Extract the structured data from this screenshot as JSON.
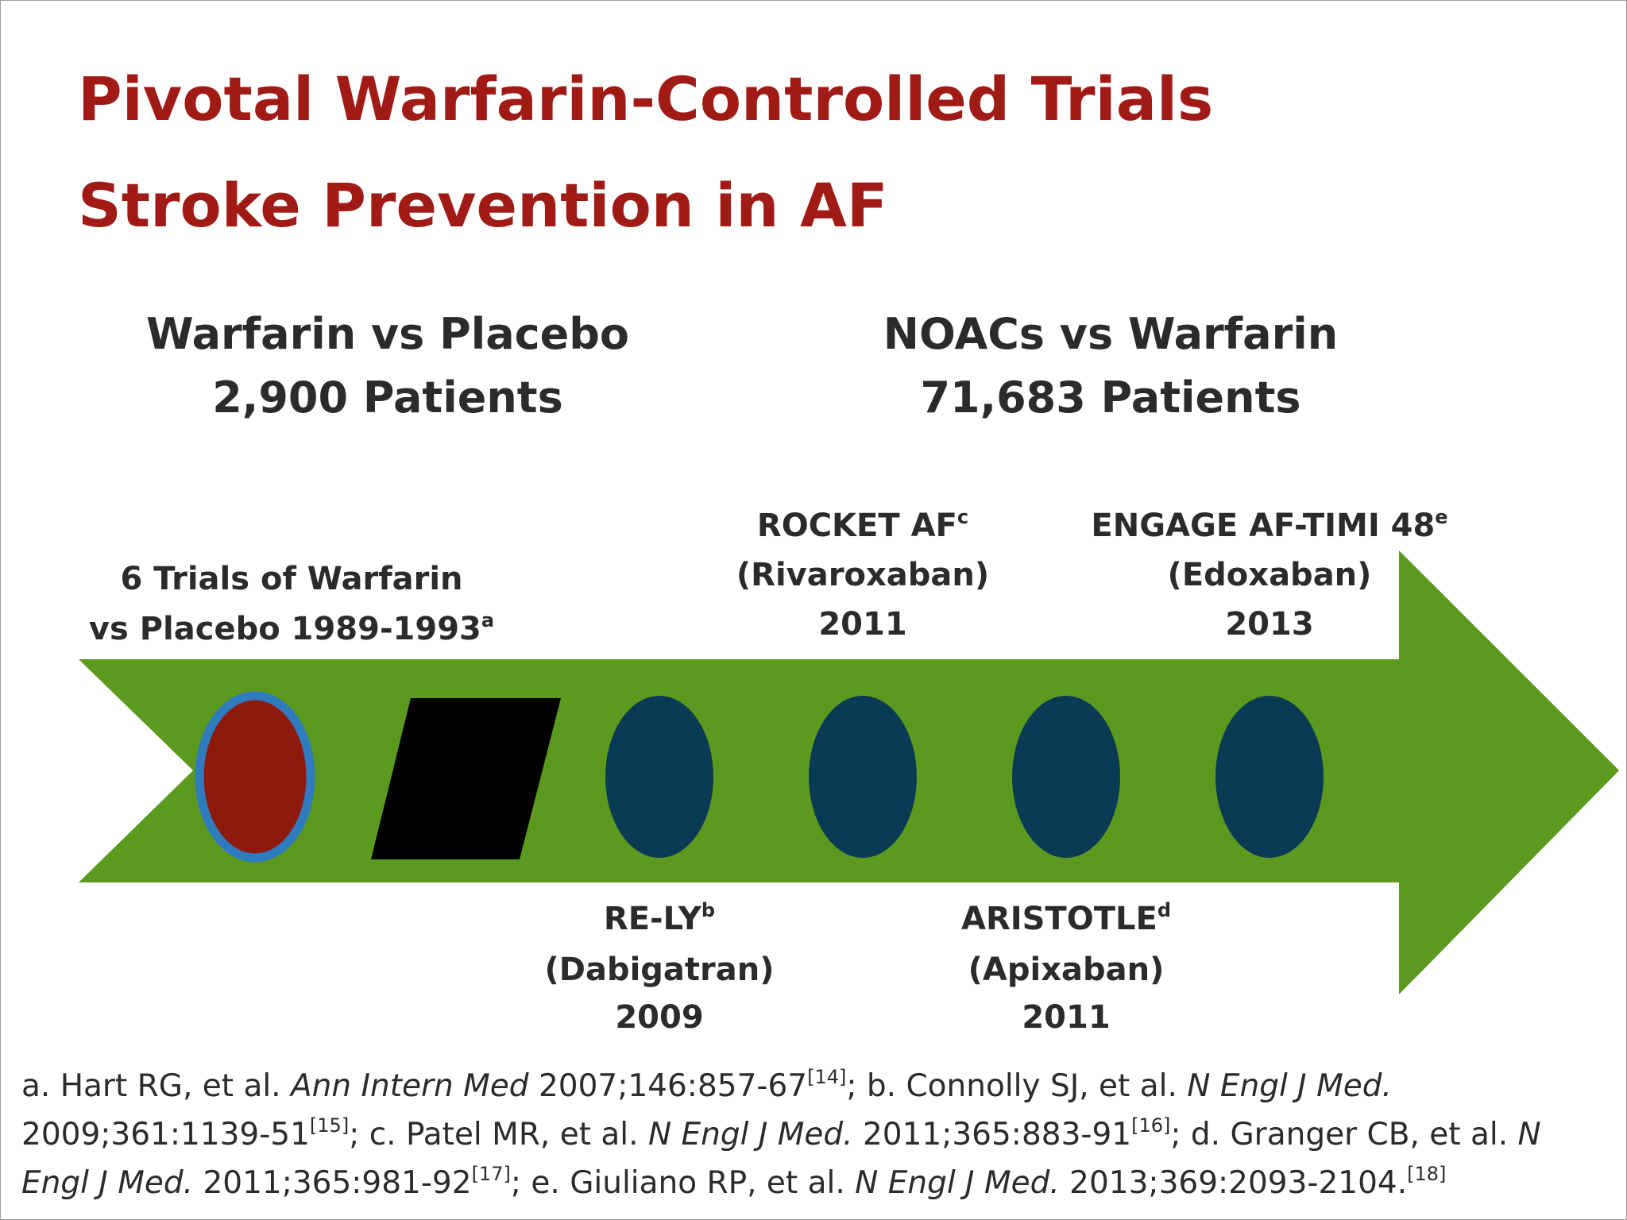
{
  "title": {
    "lines": [
      "Pivotal Warfarin-Controlled Trials",
      "Stroke Prevention in AF"
    ]
  },
  "groups": [
    {
      "heading": "Warfarin vs Placebo",
      "patients": "2,900 Patients"
    },
    {
      "heading": "NOACs vs Warfarin",
      "patients": "71,683 Patients"
    }
  ],
  "timeline": [
    {
      "lines": [
        "6 Trials of Warfarin",
        "vs Placebo 1989-1993"
      ],
      "sup": "a"
    },
    {
      "lines": [
        "RE-LY",
        "(Dabigatran)",
        "2009"
      ],
      "sup": "b"
    },
    {
      "lines": [
        "ROCKET AF",
        "(Rivaroxaban)",
        "2011"
      ],
      "sup": "c"
    },
    {
      "lines": [
        "ARISTOTLE",
        "(Apixaban)",
        "2011"
      ],
      "sup": "d"
    },
    {
      "lines": [
        "ENGAGE AF-TIMI 48",
        "(Edoxaban)",
        "2013"
      ],
      "sup": "e"
    }
  ],
  "references": [
    {
      "label": "a.",
      "authors": "Hart RG, et al.",
      "journal": "Ann Intern Med",
      "details": "2007;146:857-67",
      "ref": "[14]",
      "sep": ";"
    },
    {
      "label": "b.",
      "authors": "Connolly SJ, et al.",
      "journal": "N Engl J Med.",
      "details": "2009;361:1139-51",
      "ref": "[15]",
      "sep": ";"
    },
    {
      "label": "c.",
      "authors": "Patel MR, et al.",
      "journal": "N Engl J Med.",
      "details": "2011;365:883-91",
      "ref": "[16]",
      "sep": ";"
    },
    {
      "label": "d.",
      "authors": "Granger CB, et al.",
      "journal": "N Engl J Med.",
      "details": "2011;365:981-92",
      "ref": "[17]",
      "sep": ";"
    },
    {
      "label": "e.",
      "authors": "Giuliano RP, et al.",
      "journal": "N Engl J Med.",
      "details": "2013;369:2093-2104.",
      "ref": "[18]",
      "sep": ""
    }
  ]
}
